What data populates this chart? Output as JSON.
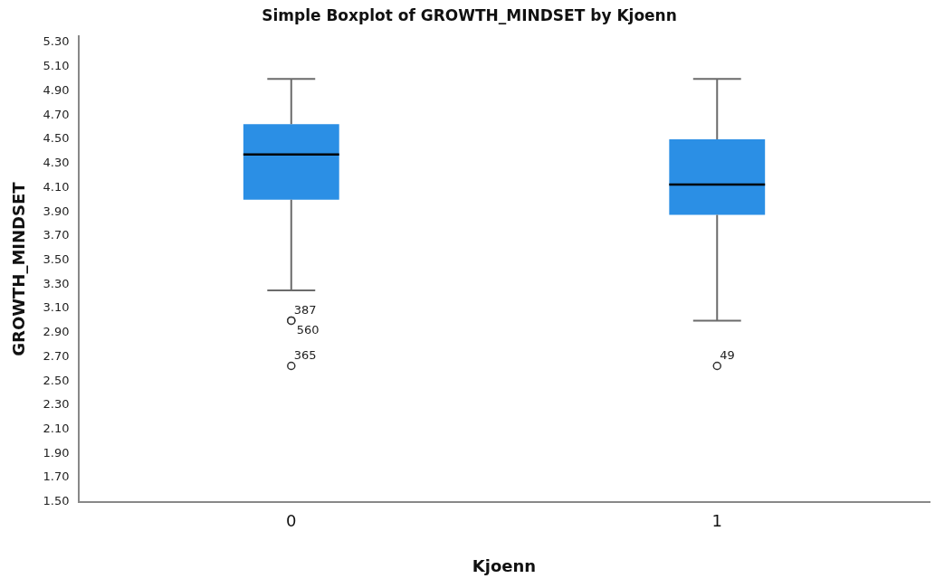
{
  "chart_data": {
    "type": "box",
    "title": "Simple Boxplot of GROWTH_MINDSET by Kjoenn",
    "xlabel": "Kjoenn",
    "ylabel": "GROWTH_MINDSET",
    "categories": [
      "0",
      "1"
    ],
    "series": [
      {
        "color": "#2b8fe5",
        "boxes": [
          {
            "low": 3.25,
            "q1": 4.0,
            "median": 4.375,
            "q3": 4.625,
            "high": 5.0,
            "outliers": [
              3.0,
              3.0,
              2.625
            ]
          },
          {
            "low": 3.0,
            "q1": 3.875,
            "median": 4.125,
            "q3": 4.5,
            "high": 5.0,
            "outliers": [
              2.625
            ]
          }
        ]
      }
    ],
    "ylim": [
      1.5,
      5.35
    ],
    "yticks": [
      {
        "value": 1.5,
        "label": "1.50"
      },
      {
        "value": 1.7,
        "label": "1.70"
      },
      {
        "value": 1.9,
        "label": "1.90"
      },
      {
        "value": 2.1,
        "label": "2.10"
      },
      {
        "value": 2.3,
        "label": "2.30"
      },
      {
        "value": 2.5,
        "label": "2.50"
      },
      {
        "value": 2.7,
        "label": "2.70"
      },
      {
        "value": 2.9,
        "label": "2.90"
      },
      {
        "value": 3.1,
        "label": "3.10"
      },
      {
        "value": 3.3,
        "label": "3.30"
      },
      {
        "value": 3.5,
        "label": "3.50"
      },
      {
        "value": 3.7,
        "label": "3.70"
      },
      {
        "value": 3.9,
        "label": "3.90"
      },
      {
        "value": 4.1,
        "label": "4.10"
      },
      {
        "value": 4.3,
        "label": "4.30"
      },
      {
        "value": 4.5,
        "label": "4.50"
      },
      {
        "value": 4.7,
        "label": "4.70"
      },
      {
        "value": 4.9,
        "label": "4.90"
      },
      {
        "value": 5.1,
        "label": "5.10"
      },
      {
        "value": 5.3,
        "label": "5.30"
      }
    ],
    "grid": false,
    "legend": false,
    "annotations": [
      "387",
      "560",
      "365",
      "49"
    ]
  }
}
